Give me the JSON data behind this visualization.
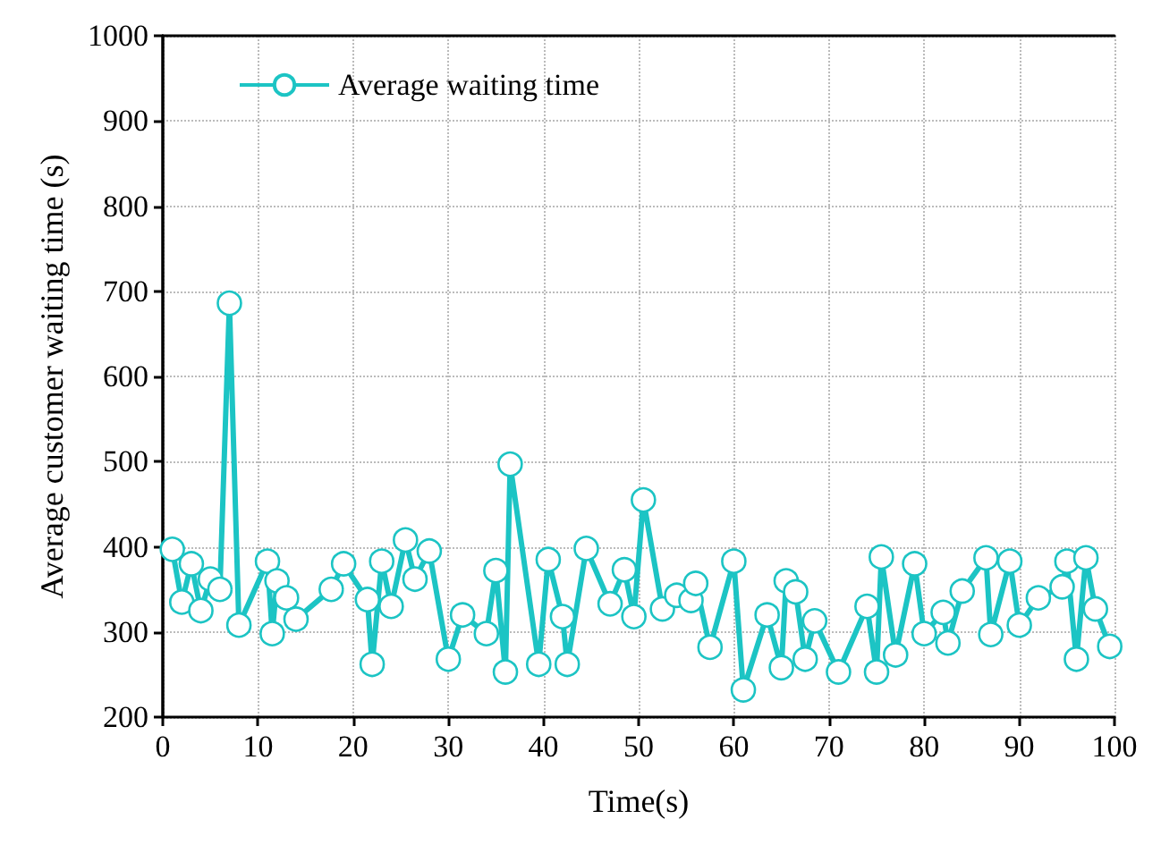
{
  "chart_data": {
    "type": "line",
    "xlabel": "Time(s)",
    "ylabel": "Average customer waiting time (s)",
    "xlim": [
      0,
      100
    ],
    "xticks": [
      0,
      10,
      20,
      30,
      40,
      50,
      60,
      70,
      80,
      90,
      100
    ],
    "ylim": [
      200,
      1000
    ],
    "yticks": [
      200,
      300,
      400,
      500,
      600,
      700,
      800,
      900,
      1000
    ],
    "grid": true,
    "legend": "top left",
    "marker": "circle",
    "line_style": "solid",
    "series": [
      {
        "name": "Average waiting time",
        "color": "#1cc4c4",
        "x": [
          1,
          2,
          3,
          4,
          5,
          6,
          7,
          8,
          11,
          11.5,
          12,
          13,
          14,
          17.7,
          19,
          21.5,
          22,
          23,
          24,
          25.5,
          26.5,
          28,
          30,
          31.5,
          34,
          35,
          36,
          36.5,
          39.5,
          40.5,
          42,
          42.5,
          44.5,
          47,
          48.5,
          49.5,
          50.5,
          52.5,
          54,
          55.5,
          56,
          57.5,
          60,
          61,
          63.5,
          65,
          65.5,
          66.5,
          67.5,
          68.5,
          71,
          74,
          75,
          75.5,
          77,
          79,
          80,
          82,
          82.5,
          84,
          86.5,
          87,
          89,
          90,
          92,
          94.5,
          95,
          96,
          97,
          98,
          99.5
        ],
        "values": [
          397,
          335,
          380,
          325,
          362,
          350,
          686,
          308,
          383,
          298,
          360,
          340,
          315,
          350,
          380,
          338,
          262,
          383,
          330,
          408,
          362,
          395,
          268,
          320,
          298,
          372,
          253,
          497,
          262,
          385,
          318,
          262,
          398,
          333,
          373,
          318,
          455,
          327,
          343,
          337,
          357,
          282,
          383,
          232,
          320,
          258,
          360,
          347,
          268,
          313,
          253,
          330,
          253,
          388,
          273,
          380,
          298,
          323,
          287,
          348,
          387,
          297,
          383,
          308,
          340,
          353,
          383,
          268,
          387,
          327,
          283
        ]
      }
    ]
  }
}
